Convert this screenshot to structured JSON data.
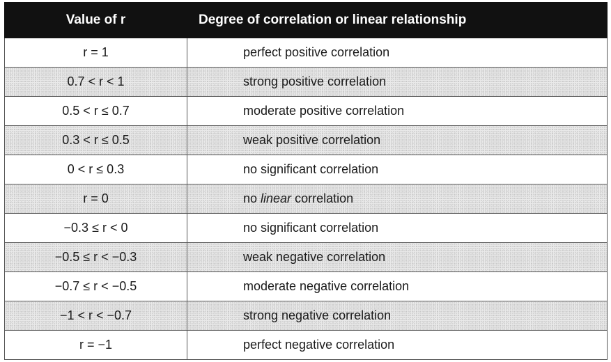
{
  "table": {
    "headers": [
      "Value of r",
      "Degree of correlation or linear relationship"
    ],
    "rows": [
      {
        "value": "r = 1",
        "degree": "perfect positive correlation",
        "shaded": false
      },
      {
        "value": "0.7 < r < 1",
        "degree": "strong positive correlation",
        "shaded": true
      },
      {
        "value": "0.5 < r ≤ 0.7",
        "degree": "moderate positive correlation",
        "shaded": false
      },
      {
        "value": "0.3 < r ≤ 0.5",
        "degree": "weak positive correlation",
        "shaded": true
      },
      {
        "value": "0 < r ≤ 0.3",
        "degree": "no significant correlation",
        "shaded": false
      },
      {
        "value": "r = 0",
        "degree_parts": {
          "pre": "no ",
          "italic": "linear",
          "post": " correlation"
        },
        "shaded": true
      },
      {
        "value": "−0.3 ≤ r < 0",
        "degree": "no significant correlation",
        "shaded": false
      },
      {
        "value": "−0.5 ≤ r < −0.3",
        "degree": "weak negative correlation",
        "shaded": true
      },
      {
        "value": "−0.7 ≤ r < −0.5",
        "degree": "moderate negative correlation",
        "shaded": false
      },
      {
        "value": "−1 < r < −0.7",
        "degree": "strong negative correlation",
        "shaded": true
      },
      {
        "value": "r = −1",
        "degree": "perfect negative correlation",
        "shaded": false
      }
    ]
  },
  "colors": {
    "header_bg": "#111111",
    "header_text": "#ffffff",
    "shaded_row": "#e9e9e9",
    "border": "#555555"
  }
}
